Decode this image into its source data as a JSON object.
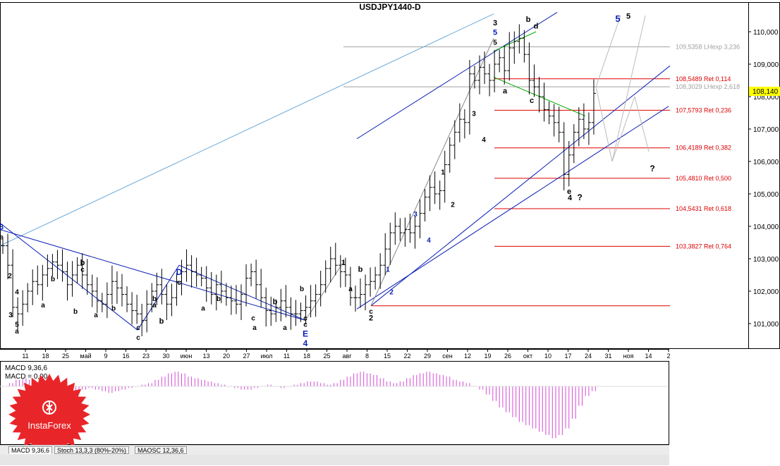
{
  "window": {
    "title": "USDJPY1440-D"
  },
  "chart_data": {
    "type": "candlestick",
    "title": "USDJPY1440-D",
    "symbol": "USDJPY",
    "timeframe": "1440-D",
    "current_price": "108,140",
    "ylim": [
      100.0,
      110.5
    ],
    "y_ticks": [
      "101,000",
      "102,000",
      "103,000",
      "104,000",
      "105,000",
      "106,000",
      "107,000",
      "108,000",
      "109,000",
      "110,000"
    ],
    "x_ticks": [
      "11",
      "18",
      "25",
      "май",
      "9",
      "16",
      "23",
      "30",
      "июн",
      "13",
      "20",
      "27",
      "июл",
      "11",
      "18",
      "25",
      "авг",
      "8",
      "15",
      "22",
      "29",
      "сен",
      "12",
      "19",
      "26",
      "окт",
      "10",
      "17",
      "24",
      "31",
      "ноя",
      "14",
      "2"
    ],
    "fib_levels": [
      {
        "label": "109,5358 LHexp 3,236",
        "value": 109.5358,
        "color": "#a0a0a0"
      },
      {
        "label": "108,5489 Ret 0,114",
        "value": 108.5489,
        "color": "#dd0000"
      },
      {
        "label": "108,3029 LHexp 2,618",
        "value": 108.3029,
        "color": "#a0a0a0"
      },
      {
        "label": "107,5793 Ret 0,236",
        "value": 107.5793,
        "color": "#dd0000"
      },
      {
        "label": "106,4189 Ret 0,382",
        "value": 106.4189,
        "color": "#dd0000"
      },
      {
        "label": "105,4810 Ret 0,500",
        "value": 105.481,
        "color": "#dd0000"
      },
      {
        "label": "104,5431 Ret 0,618",
        "value": 104.5431,
        "color": "#dd0000"
      },
      {
        "label": "103,3827 Ret 0,764",
        "value": 103.3827,
        "color": "#dd0000"
      }
    ],
    "extra_level": 101.55,
    "closes": [
      103.4,
      102.8,
      101.5,
      101.3,
      101.6,
      102.0,
      102.3,
      102.2,
      102.5,
      102.7,
      102.9,
      102.8,
      102.6,
      102.2,
      102.5,
      102.8,
      102.5,
      102.2,
      102.0,
      101.7,
      101.6,
      101.9,
      102.3,
      102.1,
      101.9,
      101.6,
      101.4,
      101.3,
      101.1,
      101.6,
      102.0,
      102.2,
      101.9,
      101.6,
      101.8,
      102.3,
      102.6,
      102.8,
      102.6,
      102.5,
      102.4,
      102.1,
      101.9,
      102.2,
      102.0,
      101.8,
      101.7,
      101.6,
      101.9,
      102.4,
      102.6,
      102.2,
      101.8,
      101.4,
      101.3,
      101.5,
      101.7,
      101.5,
      101.3,
      101.3,
      101.4,
      101.5,
      101.7,
      101.9,
      102.2,
      102.7,
      103.0,
      102.8,
      102.6,
      102.5,
      101.8,
      101.8,
      101.9,
      102.2,
      102.3,
      102.5,
      102.8,
      103.3,
      103.8,
      104.0,
      103.8,
      103.9,
      103.8,
      104.0,
      104.4,
      104.9,
      105.2,
      105.0,
      105.1,
      105.9,
      106.5,
      106.9,
      107.3,
      107.2,
      108.7,
      108.5,
      108.9,
      108.7,
      108.5,
      109.0,
      109.2,
      108.8,
      109.5,
      109.7,
      109.8,
      109.3,
      108.5,
      108.3,
      108.0,
      107.6,
      107.4,
      107.2,
      106.9,
      105.6,
      106.2,
      106.9,
      107.3,
      107.0,
      107.2,
      108.1
    ],
    "annotations": [
      {
        "text": "3",
        "x": 2,
        "y": 103.9,
        "color": "#0a1fb5",
        "size": 11
      },
      {
        "text": "e",
        "x": 2,
        "y": 103.6,
        "color": "#000",
        "size": 10
      },
      {
        "text": "2",
        "x": 14,
        "y": 102.4,
        "color": "#000",
        "size": 10
      },
      {
        "text": "4",
        "x": 24,
        "y": 101.9,
        "color": "#000",
        "size": 10
      },
      {
        "text": "3",
        "x": 15,
        "y": 101.2,
        "color": "#000",
        "size": 10
      },
      {
        "text": "5",
        "x": 24,
        "y": 100.9,
        "color": "#000",
        "size": 10
      },
      {
        "text": "a",
        "x": 24,
        "y": 100.7,
        "color": "#000",
        "size": 10
      },
      {
        "text": "b",
        "x": 75,
        "y": 102.3,
        "color": "#000",
        "size": 10
      },
      {
        "text": "a",
        "x": 61,
        "y": 101.5,
        "color": "#000",
        "size": 10
      },
      {
        "text": "b",
        "x": 117,
        "y": 102.8,
        "color": "#000",
        "size": 11
      },
      {
        "text": "c",
        "x": 117,
        "y": 102.6,
        "color": "#000",
        "size": 10
      },
      {
        "text": "b",
        "x": 107,
        "y": 101.3,
        "color": "#000",
        "size": 10
      },
      {
        "text": "a",
        "x": 136,
        "y": 101.2,
        "color": "#000",
        "size": 10
      },
      {
        "text": "b",
        "x": 161,
        "y": 101.4,
        "color": "#000",
        "size": 10
      },
      {
        "text": "b",
        "x": 219,
        "y": 101.7,
        "color": "#000",
        "size": 10
      },
      {
        "text": "a",
        "x": 219,
        "y": 101.5,
        "color": "#000",
        "size": 10
      },
      {
        "text": "b",
        "x": 229,
        "y": 101.0,
        "color": "#000",
        "size": 11
      },
      {
        "text": "c",
        "x": 196,
        "y": 100.8,
        "color": "#000",
        "size": 10
      },
      {
        "text": "c",
        "x": 196,
        "y": 100.5,
        "color": "#000",
        "size": 10
      },
      {
        "text": "D",
        "x": 254,
        "y": 102.5,
        "color": "#0a1fb5",
        "size": 12
      },
      {
        "text": "c",
        "x": 254,
        "y": 102.2,
        "color": "#000",
        "size": 10
      },
      {
        "text": "b",
        "x": 310,
        "y": 101.7,
        "color": "#000",
        "size": 10
      },
      {
        "text": "a",
        "x": 288,
        "y": 101.4,
        "color": "#000",
        "size": 10
      },
      {
        "text": "b",
        "x": 390,
        "y": 101.6,
        "color": "#000",
        "size": 11
      },
      {
        "text": "a",
        "x": 361,
        "y": 100.8,
        "color": "#000",
        "size": 10
      },
      {
        "text": "b",
        "x": 428,
        "y": 102.0,
        "color": "#000",
        "size": 10
      },
      {
        "text": "a",
        "x": 404,
        "y": 100.8,
        "color": "#000",
        "size": 10
      },
      {
        "text": "c",
        "x": 359,
        "y": 101.1,
        "color": "#000",
        "size": 10
      },
      {
        "text": "c",
        "x": 433,
        "y": 101.1,
        "color": "#000",
        "size": 10
      },
      {
        "text": "c",
        "x": 433,
        "y": 100.9,
        "color": "#000",
        "size": 10
      },
      {
        "text": "E",
        "x": 433,
        "y": 100.6,
        "color": "#0a1fb5",
        "size": 12
      },
      {
        "text": "4",
        "x": 433,
        "y": 100.3,
        "color": "#0a1fb5",
        "size": 12
      },
      {
        "text": "1",
        "x": 487,
        "y": 102.8,
        "color": "#000",
        "size": 11
      },
      {
        "text": "b",
        "x": 511,
        "y": 102.6,
        "color": "#000",
        "size": 11
      },
      {
        "text": "a",
        "x": 497,
        "y": 102.0,
        "color": "#000",
        "size": 10
      },
      {
        "text": "c",
        "x": 526,
        "y": 101.3,
        "color": "#000",
        "size": 10
      },
      {
        "text": "2",
        "x": 526,
        "y": 101.1,
        "color": "#000",
        "size": 11
      },
      {
        "text": "1",
        "x": 550,
        "y": 102.6,
        "color": "#0a1fb5",
        "size": 10
      },
      {
        "text": "2",
        "x": 555,
        "y": 101.9,
        "color": "#0a1fb5",
        "size": 10
      },
      {
        "text": "3",
        "x": 589,
        "y": 104.3,
        "color": "#0a1fb5",
        "size": 10
      },
      {
        "text": "4",
        "x": 608,
        "y": 103.5,
        "color": "#0a1fb5",
        "size": 10
      },
      {
        "text": "1",
        "x": 628,
        "y": 105.6,
        "color": "#000",
        "size": 10
      },
      {
        "text": "2",
        "x": 642,
        "y": 104.6,
        "color": "#000",
        "size": 10
      },
      {
        "text": "3",
        "x": 672,
        "y": 107.4,
        "color": "#000",
        "size": 10
      },
      {
        "text": "4",
        "x": 686,
        "y": 106.6,
        "color": "#000",
        "size": 10
      },
      {
        "text": "3",
        "x": 702,
        "y": 110.2,
        "color": "#000",
        "size": 11
      },
      {
        "text": "5",
        "x": 702,
        "y": 109.9,
        "color": "#0a1fb5",
        "size": 11
      },
      {
        "text": "5",
        "x": 702,
        "y": 109.6,
        "color": "#000",
        "size": 10
      },
      {
        "text": "b",
        "x": 749,
        "y": 110.3,
        "color": "#000",
        "size": 11
      },
      {
        "text": "d",
        "x": 760,
        "y": 110.1,
        "color": "#000",
        "size": 11
      },
      {
        "text": "a",
        "x": 716,
        "y": 108.1,
        "color": "#000",
        "size": 11
      },
      {
        "text": "c",
        "x": 754,
        "y": 107.8,
        "color": "#000",
        "size": 11
      },
      {
        "text": "e",
        "x": 807,
        "y": 105.0,
        "color": "#000",
        "size": 11
      },
      {
        "text": "4",
        "x": 808,
        "y": 104.8,
        "color": "#000",
        "size": 11
      },
      {
        "text": "?",
        "x": 822,
        "y": 104.8,
        "color": "#000",
        "size": 12
      },
      {
        "text": "?",
        "x": 925,
        "y": 105.7,
        "color": "#000",
        "size": 12
      },
      {
        "text": "5",
        "x": 876,
        "y": 110.3,
        "color": "#0a1fb5",
        "size": 13
      },
      {
        "text": "5",
        "x": 891,
        "y": 110.4,
        "color": "#000",
        "size": 11
      }
    ]
  },
  "macd_panel": {
    "label1": "MACD 9,36,6",
    "label2": "MACD = 0,00",
    "values": [
      0.0,
      0.02,
      0.04,
      0.05,
      0.04,
      0.02,
      0.0,
      -0.02,
      -0.03,
      -0.04,
      -0.04,
      -0.03,
      -0.02,
      -0.01,
      -0.02,
      -0.03,
      -0.04,
      -0.03,
      -0.02,
      -0.01,
      0.0,
      0.01,
      0.02,
      0.04,
      0.06,
      0.08,
      0.09,
      0.08,
      0.06,
      0.05,
      0.04,
      0.03,
      0.02,
      0.01,
      0.0,
      -0.01,
      -0.02,
      -0.02,
      -0.01,
      0.0,
      0.01,
      0.0,
      -0.01,
      0.0,
      0.01,
      0.02,
      0.03,
      0.03,
      0.02,
      0.01,
      0.02,
      0.04,
      0.06,
      0.08,
      0.09,
      0.08,
      0.07,
      0.05,
      0.03,
      0.02,
      0.03,
      0.05,
      0.07,
      0.08,
      0.09,
      0.08,
      0.07,
      0.06,
      0.04,
      0.03,
      0.02,
      0.0,
      -0.02,
      -0.05,
      -0.09,
      -0.13,
      -0.16,
      -0.19,
      -0.22,
      -0.24,
      -0.26,
      -0.28,
      -0.3,
      -0.32,
      -0.3,
      -0.26,
      -0.2,
      -0.12,
      -0.06,
      -0.03
    ]
  },
  "tabs": [
    "MACD 9,36,6",
    "Stoch 13,3,3 (80%-20%)",
    "MAOSC 12,36,6"
  ],
  "logo": {
    "text": "InstaForex",
    "color": "#e8262a"
  }
}
